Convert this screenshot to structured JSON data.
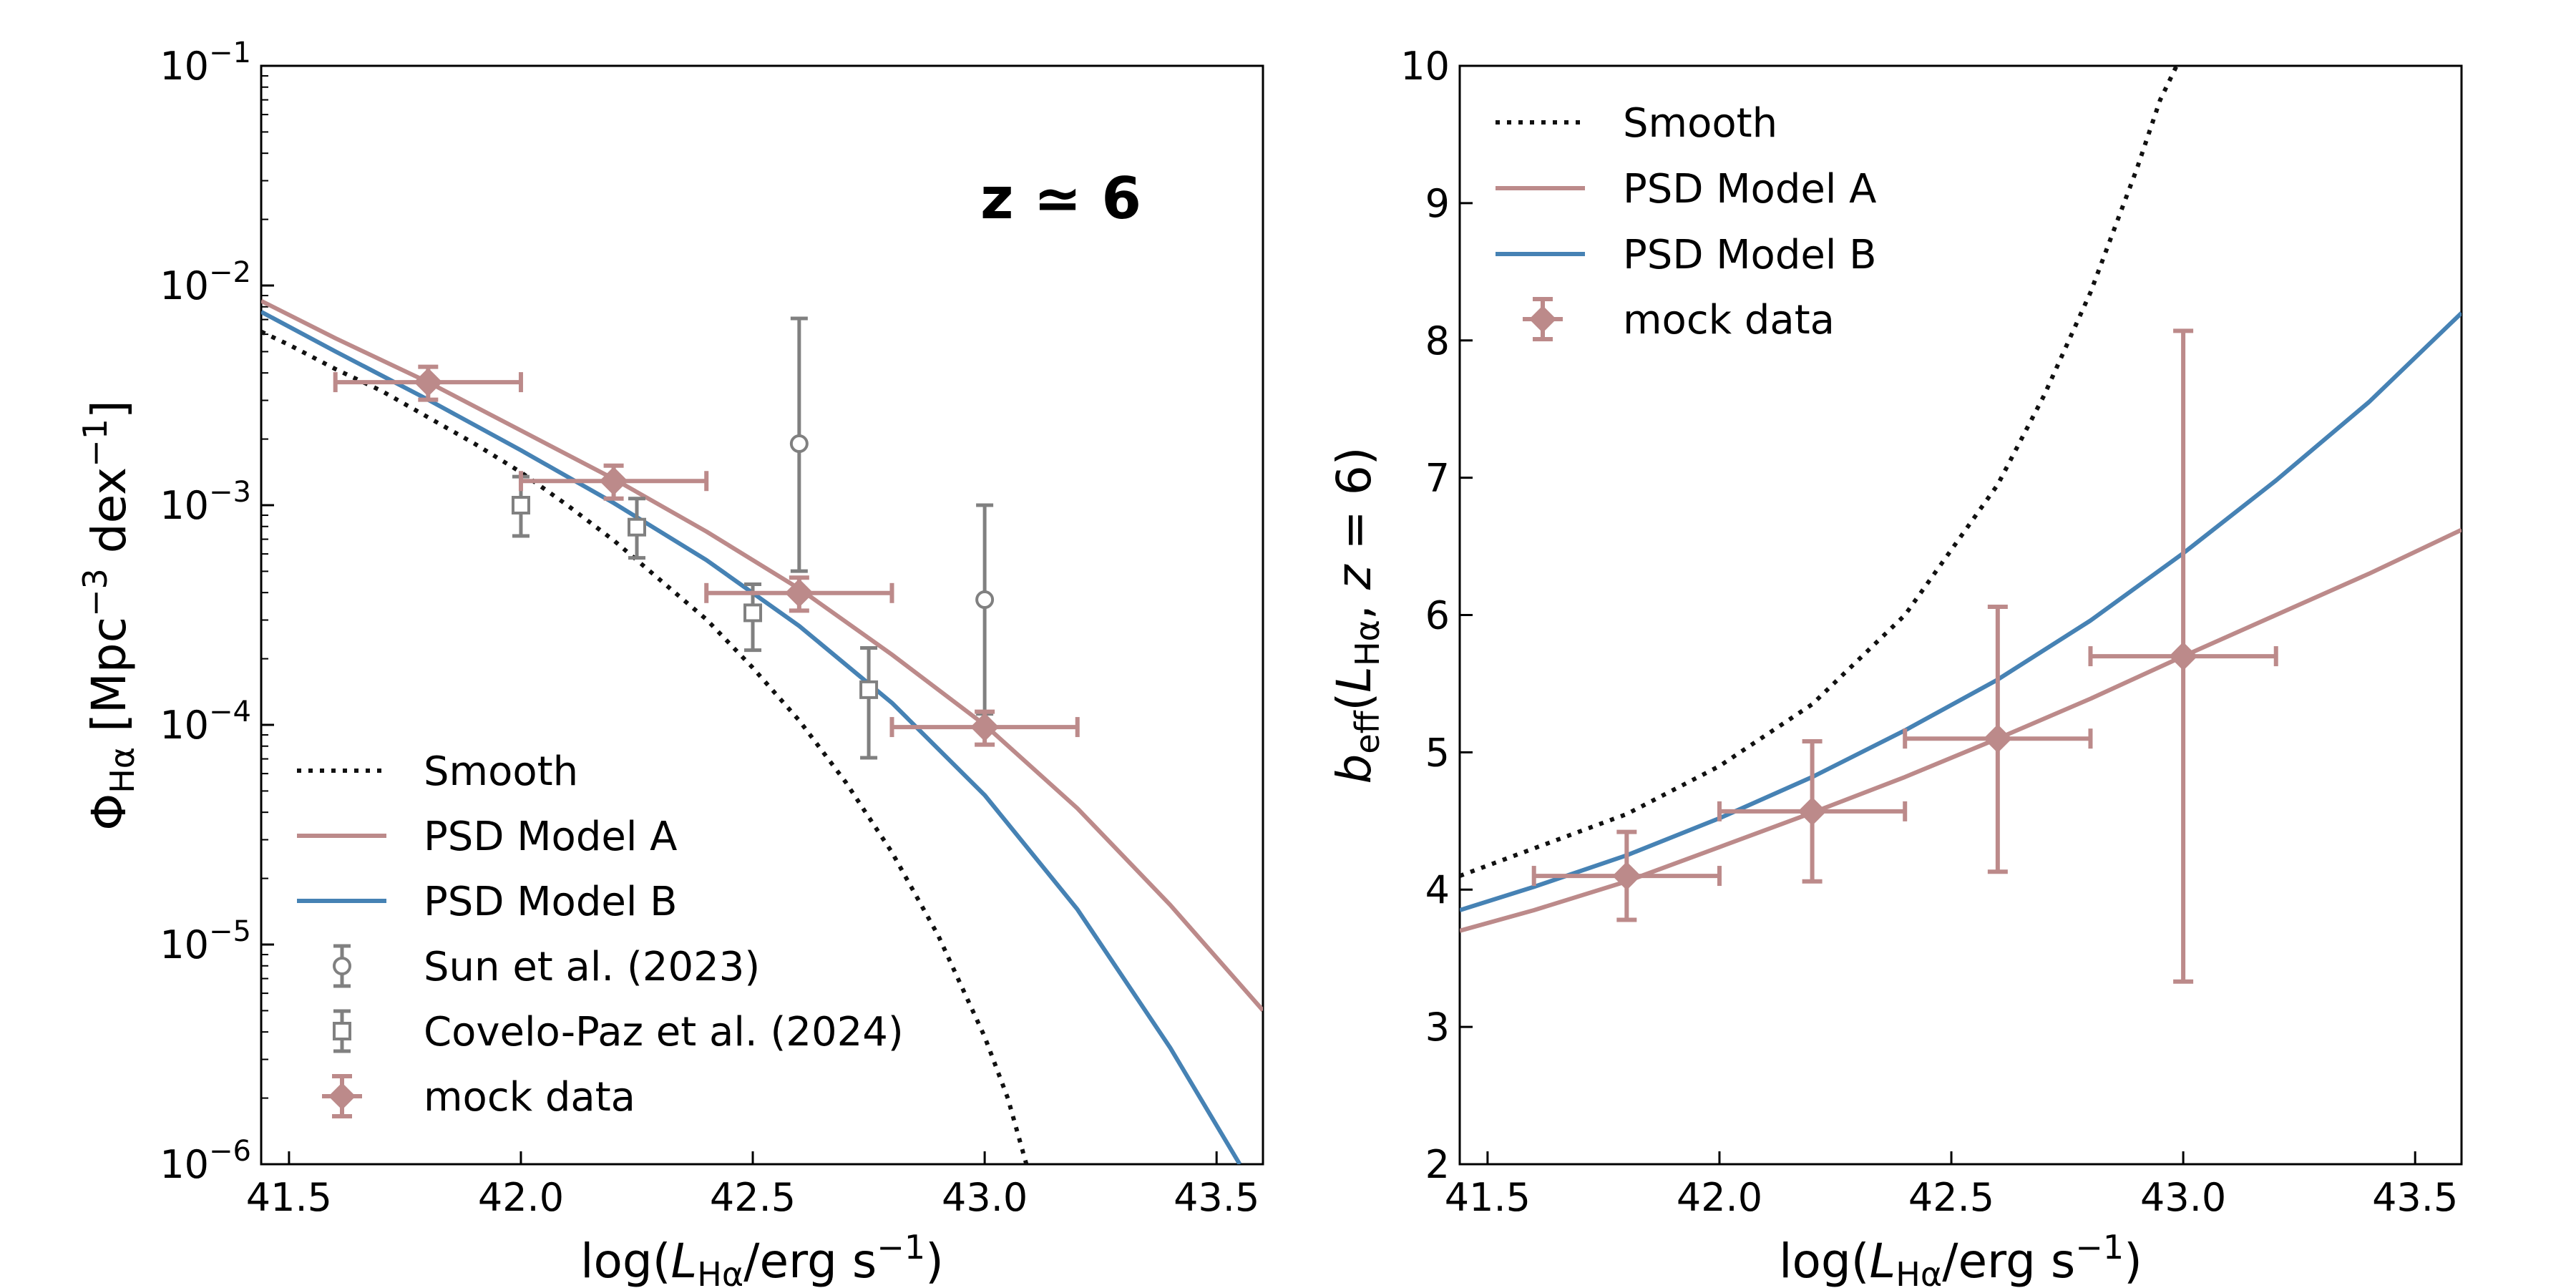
{
  "colors": {
    "smooth": "#111111",
    "model_a": "#bc8a8a",
    "model_b": "#4682b4",
    "literature": "#808080"
  },
  "chart_data": [
    {
      "type": "line",
      "panel": "left",
      "annotation": "z ≃ 6",
      "xlabel": {
        "prefix": "log(",
        "var": "L",
        "sub": "Hα",
        "mid": "/erg s",
        "sup": "−1",
        "suffix": ")"
      },
      "ylabel": {
        "var": "Φ",
        "sub": "Hα",
        "mid": " [Mpc",
        "sup1": "−3",
        "mid2": " dex",
        "sup2": "−1",
        "suffix": "]"
      },
      "xlim": [
        41.44,
        43.6
      ],
      "ylim_log10": [
        -6,
        -1
      ],
      "yscale": "log",
      "xticks": [
        41.5,
        42.0,
        42.5,
        43.0,
        43.5
      ],
      "xtick_labels": [
        "41.5",
        "42.0",
        "42.5",
        "43.0",
        "43.5"
      ],
      "yticks_log10": [
        -6,
        -5,
        -4,
        -3,
        -2,
        -1
      ],
      "ytick_labels": [
        {
          "base": "10",
          "exp": "−6"
        },
        {
          "base": "10",
          "exp": "−5"
        },
        {
          "base": "10",
          "exp": "−4"
        },
        {
          "base": "10",
          "exp": "−3"
        },
        {
          "base": "10",
          "exp": "−2"
        },
        {
          "base": "10",
          "exp": "−1"
        }
      ],
      "series": [
        {
          "name": "Smooth",
          "style": "dotted",
          "color_key": "smooth",
          "x": [
            41.44,
            41.5,
            41.6,
            41.7,
            41.8,
            41.9,
            42.0,
            42.1,
            42.2,
            42.3,
            42.4,
            42.5,
            42.6,
            42.7,
            42.8,
            42.9,
            43.0,
            43.05,
            43.09
          ],
          "log10_y": [
            -2.21,
            -2.27,
            -2.38,
            -2.48,
            -2.6,
            -2.72,
            -2.85,
            -3.0,
            -3.16,
            -3.34,
            -3.52,
            -3.74,
            -3.98,
            -4.26,
            -4.58,
            -4.96,
            -5.42,
            -5.7,
            -6.0
          ]
        },
        {
          "name": "PSD Model A",
          "style": "solid",
          "color_key": "model_a",
          "x": [
            41.44,
            41.6,
            41.8,
            42.0,
            42.2,
            42.4,
            42.6,
            42.8,
            43.0,
            43.2,
            43.4,
            43.6
          ],
          "log10_y": [
            -2.07,
            -2.24,
            -2.44,
            -2.66,
            -2.88,
            -3.12,
            -3.38,
            -3.68,
            -4.0,
            -4.38,
            -4.82,
            -5.3
          ]
        },
        {
          "name": "PSD Model B",
          "style": "solid",
          "color_key": "model_b",
          "x": [
            41.44,
            41.6,
            41.8,
            42.0,
            42.2,
            42.4,
            42.6,
            42.8,
            43.0,
            43.2,
            43.4,
            43.55
          ],
          "log10_y": [
            -2.12,
            -2.3,
            -2.52,
            -2.75,
            -2.99,
            -3.25,
            -3.55,
            -3.9,
            -4.32,
            -4.84,
            -5.47,
            -6.0
          ]
        }
      ],
      "points": [
        {
          "name": "Sun et al. (2023)",
          "marker": "circle",
          "color_key": "literature",
          "x": [
            42.6,
            43.0
          ],
          "log10_y": [
            -2.72,
            -3.43
          ],
          "log10_y_lo": [
            -3.3,
            -3.95
          ],
          "log10_y_hi": [
            -2.15,
            -3.0
          ],
          "xerr": [
            0,
            0
          ]
        },
        {
          "name": "Covelo-Paz et al. (2024)",
          "marker": "square",
          "color_key": "literature",
          "x": [
            42.0,
            42.25,
            42.5,
            42.75
          ],
          "log10_y": [
            -3.0,
            -3.1,
            -3.49,
            -3.84
          ],
          "log10_y_lo": [
            -3.14,
            -3.24,
            -3.66,
            -4.15
          ],
          "log10_y_hi": [
            -2.87,
            -2.97,
            -3.36,
            -3.65
          ],
          "xerr": [
            0,
            0,
            0,
            0
          ]
        },
        {
          "name": "mock data",
          "marker": "diamond",
          "color_key": "model_a",
          "x": [
            41.8,
            42.2,
            42.6,
            43.0
          ],
          "log10_y": [
            -2.44,
            -2.89,
            -3.4,
            -4.01
          ],
          "log10_y_lo": [
            -2.52,
            -2.97,
            -3.48,
            -4.09
          ],
          "log10_y_hi": [
            -2.37,
            -2.82,
            -3.33,
            -3.94
          ],
          "xerr": [
            0.2,
            0.2,
            0.2,
            0.2
          ]
        }
      ],
      "legend": {
        "placement": "lower-left",
        "entries": [
          "Smooth",
          "PSD Model A",
          "PSD Model B",
          "Sun et al. (2023)",
          "Covelo-Paz et al. (2024)",
          "mock data"
        ]
      }
    },
    {
      "type": "line",
      "panel": "right",
      "xlabel": {
        "prefix": "log(",
        "var": "L",
        "sub": "Hα",
        "mid": "/erg s",
        "sup": "−1",
        "suffix": ")"
      },
      "ylabel": {
        "var": "b",
        "sub": "eff",
        "mid": "(",
        "var2": "L",
        "sub2": "Hα",
        "tail": ", ",
        "var3": "z",
        "eq": " = 6)"
      },
      "xlim": [
        41.44,
        43.6
      ],
      "ylim": [
        2,
        10
      ],
      "yscale": "linear",
      "xticks": [
        41.5,
        42.0,
        42.5,
        43.0,
        43.5
      ],
      "xtick_labels": [
        "41.5",
        "42.0",
        "42.5",
        "43.0",
        "43.5"
      ],
      "yticks": [
        2,
        3,
        4,
        5,
        6,
        7,
        8,
        9,
        10
      ],
      "ytick_labels": [
        "2",
        "3",
        "4",
        "5",
        "6",
        "7",
        "8",
        "9",
        "10"
      ],
      "series": [
        {
          "name": "Smooth",
          "style": "dotted",
          "color_key": "smooth",
          "x": [
            41.44,
            41.6,
            41.8,
            42.0,
            42.2,
            42.4,
            42.6,
            42.7,
            42.8,
            42.9,
            42.95,
            43.0
          ],
          "y": [
            4.1,
            4.3,
            4.55,
            4.9,
            5.35,
            6.0,
            6.95,
            7.6,
            8.35,
            9.25,
            9.75,
            10.1
          ]
        },
        {
          "name": "PSD Model B",
          "style": "solid",
          "color_key": "model_b",
          "x": [
            41.44,
            41.6,
            41.8,
            42.0,
            42.2,
            42.4,
            42.6,
            42.8,
            43.0,
            43.2,
            43.4,
            43.6
          ],
          "y": [
            3.85,
            4.02,
            4.25,
            4.52,
            4.82,
            5.16,
            5.53,
            5.96,
            6.45,
            6.98,
            7.55,
            8.2
          ]
        },
        {
          "name": "PSD Model A",
          "style": "solid",
          "color_key": "model_a",
          "x": [
            41.44,
            41.6,
            41.8,
            42.0,
            42.2,
            42.4,
            42.6,
            42.8,
            43.0,
            43.2,
            43.4,
            43.6
          ],
          "y": [
            3.7,
            3.85,
            4.06,
            4.31,
            4.56,
            4.82,
            5.1,
            5.39,
            5.7,
            6.0,
            6.3,
            6.62
          ]
        }
      ],
      "points": [
        {
          "name": "mock data",
          "marker": "diamond",
          "color_key": "model_a",
          "x": [
            41.8,
            42.2,
            42.6,
            43.0
          ],
          "y": [
            4.1,
            4.57,
            5.1,
            5.7
          ],
          "y_lo": [
            3.78,
            4.06,
            4.13,
            3.33
          ],
          "y_hi": [
            4.42,
            5.08,
            6.06,
            8.07
          ],
          "xerr": [
            0.2,
            0.2,
            0.2,
            0.2
          ]
        }
      ],
      "legend": {
        "placement": "upper-left",
        "entries": [
          "Smooth",
          "PSD Model A",
          "PSD Model B",
          "mock data"
        ]
      }
    }
  ]
}
